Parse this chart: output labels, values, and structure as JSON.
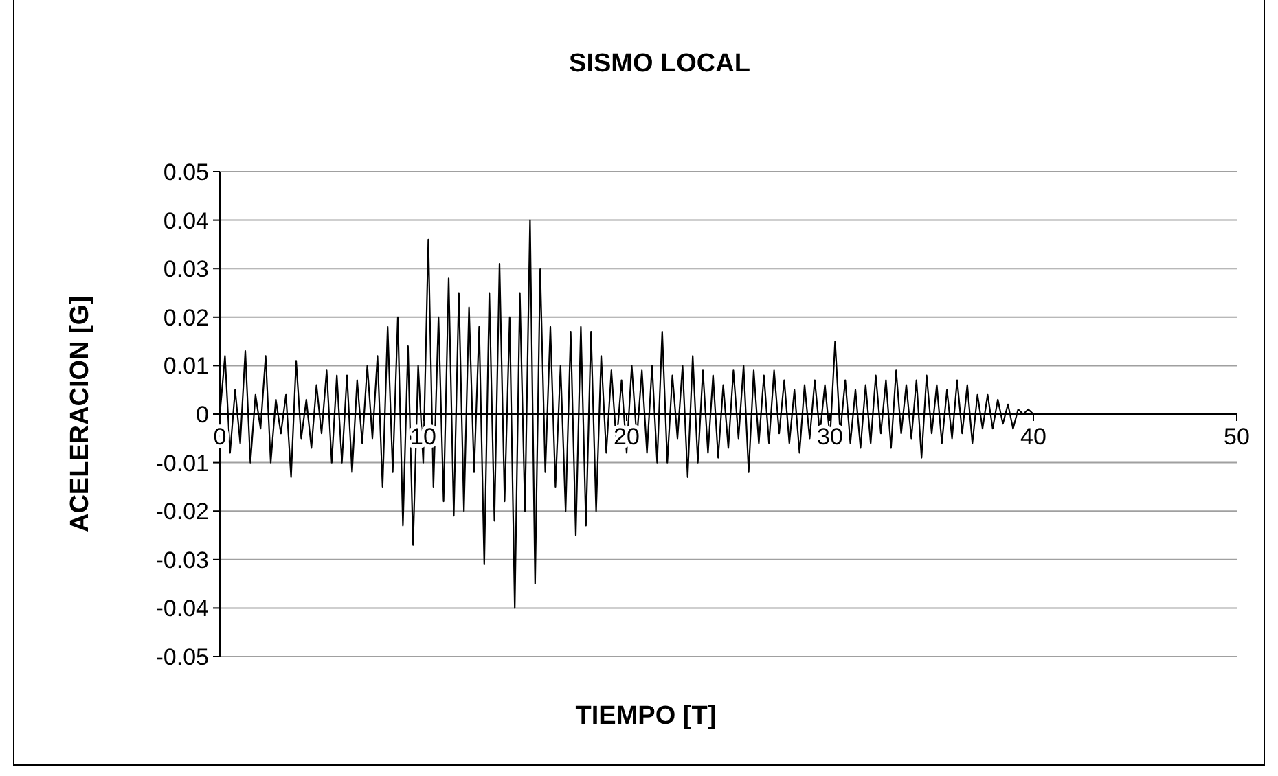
{
  "chart_data": {
    "type": "line",
    "title": "SISMO LOCAL",
    "xlabel": "TIEMPO [T]",
    "ylabel": "ACELERACION [G]",
    "xlim": [
      0,
      50
    ],
    "xticks": [
      0,
      10,
      20,
      30,
      40,
      50
    ],
    "ylim": [
      -0.05,
      0.05
    ],
    "yticks": [
      {
        "value": -0.05,
        "label": "-0.05"
      },
      {
        "value": -0.04,
        "label": "-0.04"
      },
      {
        "value": -0.03,
        "label": "-0.03"
      },
      {
        "value": -0.02,
        "label": "-0.02"
      },
      {
        "value": -0.01,
        "label": "-0.01"
      },
      {
        "value": 0,
        "label": "0"
      },
      {
        "value": 0.01,
        "label": "0.01"
      },
      {
        "value": 0.02,
        "label": "0.02"
      },
      {
        "value": 0.03,
        "label": "0.03"
      },
      {
        "value": 0.04,
        "label": "0.04"
      },
      {
        "value": 0.05,
        "label": "0.05"
      }
    ],
    "grid": "y",
    "marker": "none",
    "line_style": "solid",
    "x": [
      0,
      0.25,
      0.5,
      0.75,
      1,
      1.25,
      1.5,
      1.75,
      2,
      2.25,
      2.5,
      2.75,
      3,
      3.25,
      3.5,
      3.75,
      4,
      4.25,
      4.5,
      4.75,
      5,
      5.25,
      5.5,
      5.75,
      6,
      6.25,
      6.5,
      6.75,
      7,
      7.25,
      7.5,
      7.75,
      8,
      8.25,
      8.5,
      8.75,
      9,
      9.25,
      9.5,
      9.75,
      10,
      10.25,
      10.5,
      10.75,
      11,
      11.25,
      11.5,
      11.75,
      12,
      12.25,
      12.5,
      12.75,
      13,
      13.25,
      13.5,
      13.75,
      14,
      14.25,
      14.5,
      14.75,
      15,
      15.25,
      15.5,
      15.75,
      16,
      16.25,
      16.5,
      16.75,
      17,
      17.25,
      17.5,
      17.75,
      18,
      18.25,
      18.5,
      18.75,
      19,
      19.25,
      19.5,
      19.75,
      20,
      20.25,
      20.5,
      20.75,
      21,
      21.25,
      21.5,
      21.75,
      22,
      22.25,
      22.5,
      22.75,
      23,
      23.25,
      23.5,
      23.75,
      24,
      24.25,
      24.5,
      24.75,
      25,
      25.25,
      25.5,
      25.75,
      26,
      26.25,
      26.5,
      26.75,
      27,
      27.25,
      27.5,
      27.75,
      28,
      28.25,
      28.5,
      28.75,
      29,
      29.25,
      29.5,
      29.75,
      30,
      30.25,
      30.5,
      30.75,
      31,
      31.25,
      31.5,
      31.75,
      32,
      32.25,
      32.5,
      32.75,
      33,
      33.25,
      33.5,
      33.75,
      34,
      34.25,
      34.5,
      34.75,
      35,
      35.25,
      35.5,
      35.75,
      36,
      36.25,
      36.5,
      36.75,
      37,
      37.25,
      37.5,
      37.75,
      38,
      38.25,
      38.5,
      38.75,
      39,
      39.25,
      39.5,
      39.75,
      40
    ],
    "series": [
      {
        "color": "#000000",
        "values": [
          0,
          0.012,
          -0.008,
          0.005,
          -0.006,
          0.013,
          -0.01,
          0.004,
          -0.003,
          0.012,
          -0.01,
          0.003,
          -0.004,
          0.004,
          -0.013,
          0.011,
          -0.005,
          0.003,
          -0.007,
          0.006,
          -0.004,
          0.009,
          -0.01,
          0.008,
          -0.01,
          0.008,
          -0.012,
          0.007,
          -0.006,
          0.01,
          -0.005,
          0.012,
          -0.015,
          0.018,
          -0.012,
          0.02,
          -0.023,
          0.014,
          -0.027,
          0.01,
          -0.01,
          0.036,
          -0.015,
          0.02,
          -0.018,
          0.028,
          -0.021,
          0.025,
          -0.02,
          0.022,
          -0.012,
          0.018,
          -0.031,
          0.025,
          -0.022,
          0.031,
          -0.018,
          0.02,
          -0.04,
          0.025,
          -0.02,
          0.04,
          -0.035,
          0.03,
          -0.012,
          0.018,
          -0.015,
          0.01,
          -0.02,
          0.017,
          -0.025,
          0.018,
          -0.023,
          0.017,
          -0.02,
          0.012,
          -0.008,
          0.009,
          -0.006,
          0.007,
          -0.008,
          0.01,
          -0.005,
          0.009,
          -0.008,
          0.01,
          -0.01,
          0.017,
          -0.01,
          0.008,
          -0.005,
          0.01,
          -0.013,
          0.012,
          -0.01,
          0.009,
          -0.008,
          0.008,
          -0.009,
          0.006,
          -0.007,
          0.009,
          -0.005,
          0.01,
          -0.012,
          0.009,
          -0.006,
          0.008,
          -0.006,
          0.009,
          -0.004,
          0.007,
          -0.006,
          0.005,
          -0.008,
          0.006,
          -0.005,
          0.007,
          -0.004,
          0.006,
          -0.005,
          0.015,
          -0.004,
          0.007,
          -0.006,
          0.005,
          -0.007,
          0.006,
          -0.006,
          0.008,
          -0.004,
          0.007,
          -0.007,
          0.009,
          -0.004,
          0.006,
          -0.005,
          0.007,
          -0.009,
          0.008,
          -0.004,
          0.006,
          -0.006,
          0.005,
          -0.005,
          0.007,
          -0.004,
          0.006,
          -0.006,
          0.004,
          -0.003,
          0.004,
          -0.003,
          0.003,
          -0.002,
          0.002,
          -0.003,
          0.001,
          0,
          0.001,
          0
        ]
      }
    ]
  }
}
